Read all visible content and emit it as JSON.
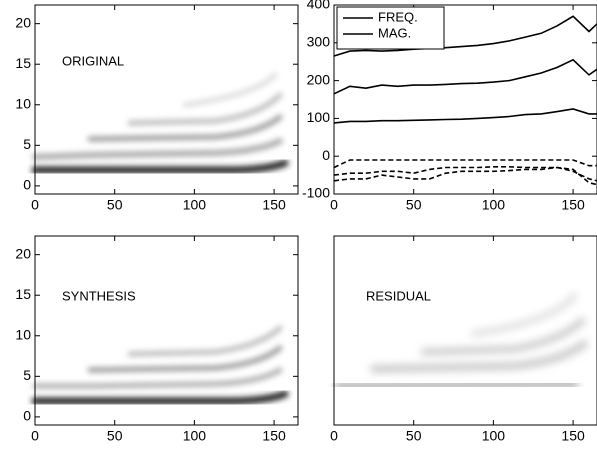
{
  "chart_data": [
    {
      "type": "spectrogram",
      "annotation": "ORIGINAL",
      "xlim": [
        0,
        165
      ],
      "xticks": [
        0,
        50,
        100,
        150
      ],
      "ylim": [
        -1,
        22.3
      ],
      "yticks": [
        0,
        5,
        10,
        15,
        20
      ]
    },
    {
      "type": "line",
      "xlim": [
        0,
        165
      ],
      "xticks": [
        0,
        50,
        100,
        150
      ],
      "ylim": [
        -100,
        400
      ],
      "yticks": [
        -100,
        0,
        100,
        200,
        300,
        400
      ],
      "x": [
        0,
        10,
        20,
        30,
        40,
        50,
        60,
        70,
        80,
        90,
        100,
        110,
        120,
        130,
        140,
        150,
        160,
        165
      ],
      "series": [
        {
          "name": "FREQ.",
          "color": "#000000",
          "dash": false,
          "values": [
            265,
            278,
            280,
            278,
            280,
            283,
            285,
            287,
            290,
            293,
            298,
            305,
            315,
            325,
            345,
            370,
            330,
            350
          ]
        },
        {
          "color": "#000000",
          "dash": false,
          "values": [
            165,
            185,
            180,
            188,
            185,
            188,
            188,
            190,
            192,
            193,
            196,
            200,
            210,
            220,
            235,
            255,
            215,
            230
          ]
        },
        {
          "color": "#000000",
          "dash": false,
          "values": [
            88,
            92,
            92,
            94,
            94,
            95,
            96,
            97,
            98,
            100,
            102,
            105,
            110,
            112,
            118,
            125,
            112,
            112
          ]
        },
        {
          "name": "MAG.",
          "color": "#000000",
          "dash": true,
          "values": [
            -30,
            -10,
            -10,
            -10,
            -10,
            -10,
            -10,
            -10,
            -10,
            -10,
            -10,
            -10,
            -10,
            -10,
            -10,
            -10,
            -25,
            -25
          ]
        },
        {
          "color": "#000000",
          "dash": true,
          "values": [
            -50,
            -45,
            -45,
            -40,
            -40,
            -45,
            -35,
            -30,
            -30,
            -30,
            -28,
            -28,
            -30,
            -30,
            -30,
            -40,
            -60,
            -65
          ]
        },
        {
          "color": "#000000",
          "dash": true,
          "values": [
            -65,
            -60,
            -60,
            -50,
            -55,
            -60,
            -60,
            -45,
            -40,
            -40,
            -40,
            -38,
            -35,
            -35,
            -30,
            -35,
            -70,
            -75
          ]
        }
      ]
    },
    {
      "type": "spectrogram",
      "annotation": "SYNTHESIS",
      "xlim": [
        0,
        165
      ],
      "xticks": [
        0,
        50,
        100,
        150
      ],
      "ylim": [
        -1,
        22.3
      ],
      "yticks": [
        0,
        5,
        10,
        15,
        20
      ]
    },
    {
      "type": "spectrogram",
      "annotation": "RESIDUAL",
      "xlim": [
        0,
        165
      ],
      "xticks": [
        0,
        50,
        100,
        150
      ],
      "ylim": [
        -1,
        22.3
      ]
    }
  ]
}
